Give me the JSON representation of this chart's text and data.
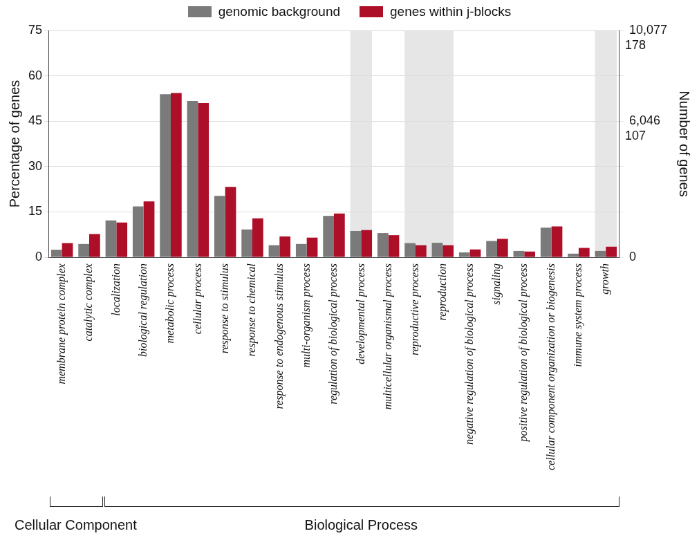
{
  "chart_data": {
    "type": "bar",
    "categories": [
      "membrane protein complex",
      "catalytic complex",
      "localization",
      "biological regulation",
      "metabolic process",
      "cellular process",
      "response to stimulus",
      "response to chemical",
      "response to endogenous stimulus",
      "multi-organism process",
      "regulation of biological process",
      "developmental process",
      "multicellular organismal process",
      "reproductive process",
      "reproduction",
      "negative regulation of biological process",
      "signaling",
      "positive regulation of biological process",
      "cellular component organization or biogenesis",
      "immune system process",
      "growth"
    ],
    "series": [
      {
        "name": "genomic background",
        "color": "#7a7a7a",
        "values": [
          2.5,
          4.4,
          12.2,
          16.8,
          53.9,
          51.7,
          20.3,
          9.2,
          4.0,
          4.4,
          13.7,
          8.7,
          8.0,
          4.7,
          4.8,
          1.6,
          5.4,
          2.1,
          9.8,
          1.2,
          2.1
        ]
      },
      {
        "name": "genes within j-blocks",
        "color": "#ad0e28",
        "values": [
          4.7,
          7.7,
          11.5,
          18.5,
          54.3,
          51.0,
          23.3,
          12.9,
          6.9,
          6.5,
          14.5,
          9.0,
          7.3,
          4.0,
          4.0,
          2.6,
          6.1,
          1.9,
          10.2,
          3.1,
          3.5
        ]
      }
    ],
    "ylabel": "Percentage of genes",
    "y2label": "Number of genes",
    "ylim": [
      0,
      75
    ],
    "yticks": [
      0,
      15,
      30,
      45,
      60,
      75
    ],
    "y2lim": [
      0,
      10077
    ],
    "y2ticks": [
      0,
      {
        "value": 2015.4,
        "label": null
      },
      {
        "value": 4030.8,
        "label": null
      },
      {
        "value": 6046,
        "label": "6,046"
      },
      {
        "value": 8061.6,
        "label": null
      },
      {
        "value": 10077,
        "label": "10,077"
      }
    ],
    "y3lim": [
      0,
      178
    ],
    "y3ticks": [
      {
        "value": 107,
        "label": "107"
      },
      {
        "value": 178,
        "label": "178"
      }
    ],
    "bands": [
      {
        "axis": "x",
        "from": "developmental process",
        "to": "developmental process",
        "color": "#e6e6e6"
      },
      {
        "axis": "x",
        "from": "reproductive process",
        "to": "reproduction",
        "color": "#e6e6e6"
      },
      {
        "axis": "x",
        "from": "growth",
        "to": "growth",
        "color": "#e6e6e6"
      }
    ],
    "annotations": [
      "Cellular Component",
      "Biological Process"
    ],
    "grid": "y",
    "legend": "top"
  }
}
